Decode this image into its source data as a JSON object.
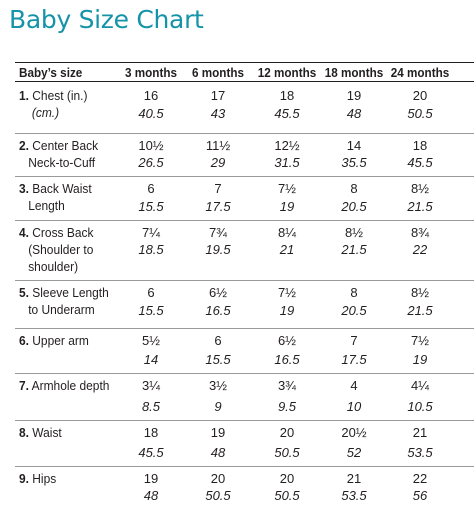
{
  "title": "Baby Size Chart",
  "header": {
    "label": "Baby’s size",
    "columns": [
      "3 months",
      "6 months",
      "12 months",
      "18 months",
      "24 months"
    ]
  },
  "rows": [
    {
      "number": "1.",
      "label_lines": [
        "Chest (in.)"
      ],
      "sub_label": "(cm.)",
      "inches": [
        "16",
        "17",
        "18",
        "19",
        "20"
      ],
      "cm": [
        "40.5",
        "43",
        "45.5",
        "48",
        "50.5"
      ]
    },
    {
      "number": "2.",
      "label_lines": [
        "Center Back",
        "Neck-to-Cuff"
      ],
      "inches": [
        "10½",
        "11½",
        "12½",
        "14",
        "18"
      ],
      "cm": [
        "26.5",
        "29",
        "31.5",
        "35.5",
        "45.5"
      ]
    },
    {
      "number": "3.",
      "label_lines": [
        "Back Waist",
        "Length"
      ],
      "inches": [
        "6",
        "7",
        "7½",
        "8",
        "8½"
      ],
      "cm": [
        "15.5",
        "17.5",
        "19",
        "20.5",
        "21.5"
      ]
    },
    {
      "number": "4.",
      "label_lines": [
        "Cross Back",
        "(Shoulder to",
        "shoulder)"
      ],
      "inches": [
        "7¼",
        "7¾",
        "8¼",
        "8½",
        "8¾"
      ],
      "cm": [
        "18.5",
        "19.5",
        "21",
        "21.5",
        "22"
      ]
    },
    {
      "number": "5.",
      "label_lines": [
        "Sleeve Length",
        "to Underarm"
      ],
      "inches": [
        "6",
        "6½",
        "7½",
        "8",
        "8½"
      ],
      "cm": [
        "15.5",
        "16.5",
        "19",
        "20.5",
        "21.5"
      ]
    },
    {
      "number": "6.",
      "label_lines": [
        "Upper arm"
      ],
      "inches": [
        "5½",
        "6",
        "6½",
        "7",
        "7½"
      ],
      "cm": [
        "14",
        "15.5",
        "16.5",
        "17.5",
        "19"
      ]
    },
    {
      "number": "7.",
      "label_lines": [
        "Armhole depth"
      ],
      "inches": [
        "3¼",
        "3½",
        "3¾",
        "4",
        "4¼"
      ],
      "cm": [
        "8.5",
        "9",
        "9.5",
        "10",
        "10.5"
      ]
    },
    {
      "number": "8.",
      "label_lines": [
        "Waist"
      ],
      "inches": [
        "18",
        "19",
        "20",
        "20½",
        "21"
      ],
      "cm": [
        "45.5",
        "48",
        "50.5",
        "52",
        "53.5"
      ]
    },
    {
      "number": "9.",
      "label_lines": [
        "Hips"
      ],
      "inches": [
        "19",
        "20",
        "20",
        "21",
        "22"
      ],
      "cm": [
        "48",
        "50.5",
        "50.5",
        "53.5",
        "56"
      ]
    }
  ]
}
